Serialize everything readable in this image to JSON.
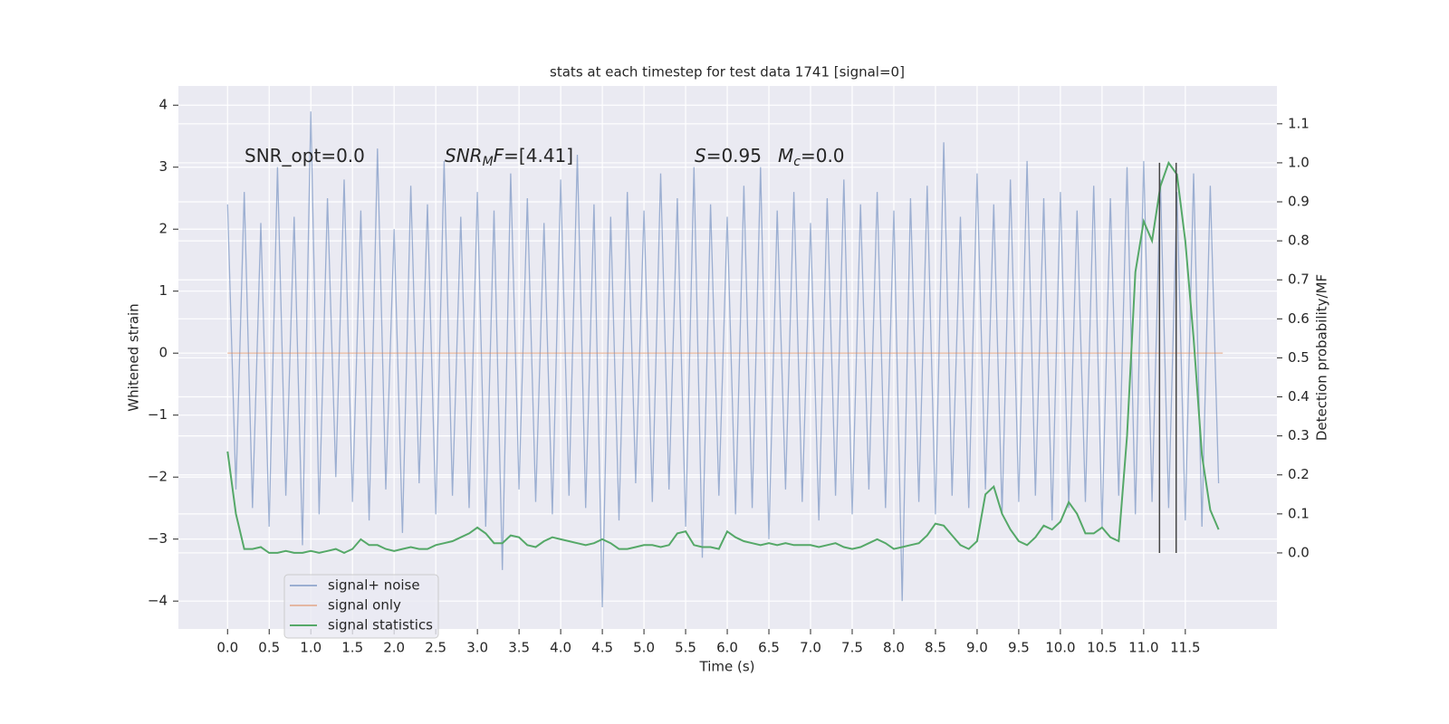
{
  "chart_data": {
    "type": "line",
    "title": "stats at each timestep for test data 1741 [signal=0]",
    "xlabel": "Time (s)",
    "ylabel": "Whitened strain",
    "y2label": "Detection probability/MF",
    "grid": true,
    "legend_loc": "lower left",
    "xlim": [
      -0.59,
      12.6
    ],
    "ylim": [
      -4.45,
      4.31
    ],
    "y2lim": [
      -0.195,
      1.197
    ],
    "xticks": [
      {
        "value": 0,
        "label": "0.0"
      },
      {
        "value": 0.5,
        "label": "0.5"
      },
      {
        "value": 1,
        "label": "1.0"
      },
      {
        "value": 1.5,
        "label": "1.5"
      },
      {
        "value": 2,
        "label": "2.0"
      },
      {
        "value": 2.5,
        "label": "2.5"
      },
      {
        "value": 3,
        "label": "3.0"
      },
      {
        "value": 3.5,
        "label": "3.5"
      },
      {
        "value": 4,
        "label": "4.0"
      },
      {
        "value": 4.5,
        "label": "4.5"
      },
      {
        "value": 5,
        "label": "5.0"
      },
      {
        "value": 5.5,
        "label": "5.5"
      },
      {
        "value": 6,
        "label": "6.0"
      },
      {
        "value": 6.5,
        "label": "6.5"
      },
      {
        "value": 7,
        "label": "7.0"
      },
      {
        "value": 7.5,
        "label": "7.5"
      },
      {
        "value": 8,
        "label": "8.0"
      },
      {
        "value": 8.5,
        "label": "8.5"
      },
      {
        "value": 9,
        "label": "9.0"
      },
      {
        "value": 9.5,
        "label": "9.5"
      },
      {
        "value": 10,
        "label": "10.0"
      },
      {
        "value": 10.5,
        "label": "10.5"
      },
      {
        "value": 11,
        "label": "11.0"
      },
      {
        "value": 11.5,
        "label": "11.5"
      }
    ],
    "yticks": [
      {
        "value": -4,
        "label": "−4"
      },
      {
        "value": -3,
        "label": "−3"
      },
      {
        "value": -2,
        "label": "−2"
      },
      {
        "value": -1,
        "label": "−1"
      },
      0,
      1,
      2,
      3,
      4
    ],
    "y2ticks": [
      {
        "value": 0,
        "label": "0.0"
      },
      {
        "value": 0.1,
        "label": "0.1"
      },
      {
        "value": 0.2,
        "label": "0.2"
      },
      {
        "value": 0.3,
        "label": "0.3"
      },
      {
        "value": 0.4,
        "label": "0.4"
      },
      {
        "value": 0.5,
        "label": "0.5"
      },
      {
        "value": 0.6,
        "label": "0.6"
      },
      {
        "value": 0.7,
        "label": "0.7"
      },
      {
        "value": 0.8,
        "label": "0.8"
      },
      {
        "value": 0.9,
        "label": "0.9"
      },
      {
        "value": 1.0,
        "label": "1.0"
      },
      {
        "value": 1.1,
        "label": "1.1"
      }
    ],
    "x": [
      0,
      0.1,
      0.2,
      0.3,
      0.4,
      0.5,
      0.6,
      0.7,
      0.8,
      0.9,
      1,
      1.1,
      1.2,
      1.3,
      1.4,
      1.5,
      1.6,
      1.7,
      1.8,
      1.9,
      2,
      2.1,
      2.2,
      2.3,
      2.4,
      2.5,
      2.6,
      2.7,
      2.8,
      2.9,
      3,
      3.1,
      3.2,
      3.3,
      3.4,
      3.5,
      3.6,
      3.7,
      3.8,
      3.9,
      4,
      4.1,
      4.2,
      4.3,
      4.4,
      4.5,
      4.6,
      4.7,
      4.8,
      4.9,
      5,
      5.1,
      5.2,
      5.3,
      5.4,
      5.5,
      5.6,
      5.7,
      5.8,
      5.9,
      6,
      6.1,
      6.2,
      6.3,
      6.4,
      6.5,
      6.6,
      6.7,
      6.8,
      6.9,
      7,
      7.1,
      7.2,
      7.3,
      7.4,
      7.5,
      7.6,
      7.7,
      7.8,
      7.9,
      8,
      8.1,
      8.2,
      8.3,
      8.4,
      8.5,
      8.6,
      8.7,
      8.8,
      8.9,
      9,
      9.1,
      9.2,
      9.3,
      9.4,
      9.5,
      9.6,
      9.7,
      9.8,
      9.9,
      10,
      10.1,
      10.2,
      10.3,
      10.4,
      10.5,
      10.6,
      10.7,
      10.8,
      10.9,
      11,
      11.1,
      11.2,
      11.3,
      11.4,
      11.5,
      11.6,
      11.7,
      11.8,
      11.9
    ],
    "series": [
      {
        "name": "signal+ noise",
        "color": "#4c72b0",
        "alpha": 0.5,
        "values": [
          2.4,
          -2.2,
          2.6,
          -2.5,
          2.1,
          -2.8,
          3.0,
          -2.3,
          2.2,
          -3.1,
          3.9,
          -2.6,
          2.5,
          -2.0,
          2.8,
          -2.4,
          2.3,
          -2.7,
          3.3,
          -2.2,
          2.0,
          -2.9,
          2.7,
          -2.1,
          2.4,
          -2.6,
          3.1,
          -2.3,
          2.2,
          -2.5,
          2.6,
          -2.8,
          2.3,
          -3.5,
          2.9,
          -2.2,
          2.5,
          -2.4,
          2.1,
          -2.6,
          2.8,
          -2.3,
          3.2,
          -2.5,
          2.4,
          -4.1,
          2.2,
          -2.7,
          2.6,
          -2.1,
          2.3,
          -2.4,
          2.9,
          -2.2,
          2.5,
          -2.8,
          3.0,
          -3.3,
          2.4,
          -2.3,
          2.2,
          -2.6,
          2.7,
          -2.5,
          3.0,
          -3.0,
          2.3,
          -2.2,
          2.6,
          -2.4,
          2.1,
          -2.7,
          2.5,
          -2.3,
          2.8,
          -2.6,
          2.4,
          -2.2,
          2.6,
          -2.5,
          2.3,
          -4.0,
          2.5,
          -2.4,
          2.7,
          -2.6,
          3.4,
          -2.3,
          2.2,
          -2.5,
          2.9,
          -2.2,
          2.4,
          -2.6,
          2.8,
          -2.4,
          3.1,
          -2.3,
          2.5,
          -2.7,
          2.6,
          -2.5,
          2.3,
          -2.4,
          2.7,
          -2.8,
          2.5,
          -2.3,
          3.0,
          -2.6,
          3.1,
          -2.4,
          2.8,
          -2.5,
          2.6,
          -2.7,
          2.9,
          -2.8,
          2.7,
          -2.1
        ]
      },
      {
        "name": "signal only",
        "color": "#dd8452",
        "alpha": 0.5,
        "x": [
          0,
          11.95
        ],
        "values": [
          0,
          0
        ]
      },
      {
        "name": "signal statistics",
        "color": "#55a868",
        "alpha": 1,
        "axis": "y2",
        "values": [
          0.26,
          0.1,
          0.01,
          0.01,
          0.015,
          0.0,
          0.0,
          0.005,
          0.0,
          0.0,
          0.005,
          0.0,
          0.005,
          0.01,
          0.0,
          0.01,
          0.035,
          0.02,
          0.02,
          0.01,
          0.005,
          0.01,
          0.015,
          0.01,
          0.01,
          0.02,
          0.025,
          0.03,
          0.04,
          0.05,
          0.065,
          0.05,
          0.025,
          0.025,
          0.045,
          0.04,
          0.02,
          0.015,
          0.03,
          0.04,
          0.035,
          0.03,
          0.025,
          0.02,
          0.025,
          0.035,
          0.025,
          0.01,
          0.01,
          0.015,
          0.02,
          0.02,
          0.015,
          0.02,
          0.05,
          0.055,
          0.02,
          0.015,
          0.015,
          0.01,
          0.055,
          0.04,
          0.03,
          0.025,
          0.02,
          0.025,
          0.02,
          0.025,
          0.02,
          0.02,
          0.02,
          0.015,
          0.02,
          0.025,
          0.015,
          0.01,
          0.015,
          0.025,
          0.035,
          0.025,
          0.01,
          0.015,
          0.02,
          0.025,
          0.045,
          0.075,
          0.07,
          0.045,
          0.02,
          0.01,
          0.03,
          0.15,
          0.17,
          0.1,
          0.06,
          0.03,
          0.02,
          0.04,
          0.07,
          0.06,
          0.08,
          0.13,
          0.1,
          0.05,
          0.05,
          0.065,
          0.04,
          0.03,
          0.3,
          0.72,
          0.85,
          0.8,
          0.94,
          1.0,
          0.97,
          0.8,
          0.55,
          0.25,
          0.11,
          0.06
        ]
      }
    ],
    "vlines": {
      "x": [
        11.19,
        11.39
      ],
      "ymin": 0,
      "ymax": 1.0,
      "axis": "y2",
      "color": "#444444"
    },
    "annotations": [
      [
        {
          "text": "SNR_opt=0.0"
        }
      ],
      [
        {
          "text": "SNR",
          "italic": true
        },
        {
          "text": "M",
          "italic": true,
          "sub": true
        },
        {
          "text": "F",
          "italic": true
        },
        {
          "text": "=[4.41]"
        }
      ],
      [
        {
          "text": "S",
          "italic": true
        },
        {
          "text": "=0.95"
        }
      ],
      [
        {
          "text": "M",
          "italic": true
        },
        {
          "text": "c",
          "italic": true,
          "sub": true
        },
        {
          "text": "=0.0"
        }
      ]
    ]
  }
}
